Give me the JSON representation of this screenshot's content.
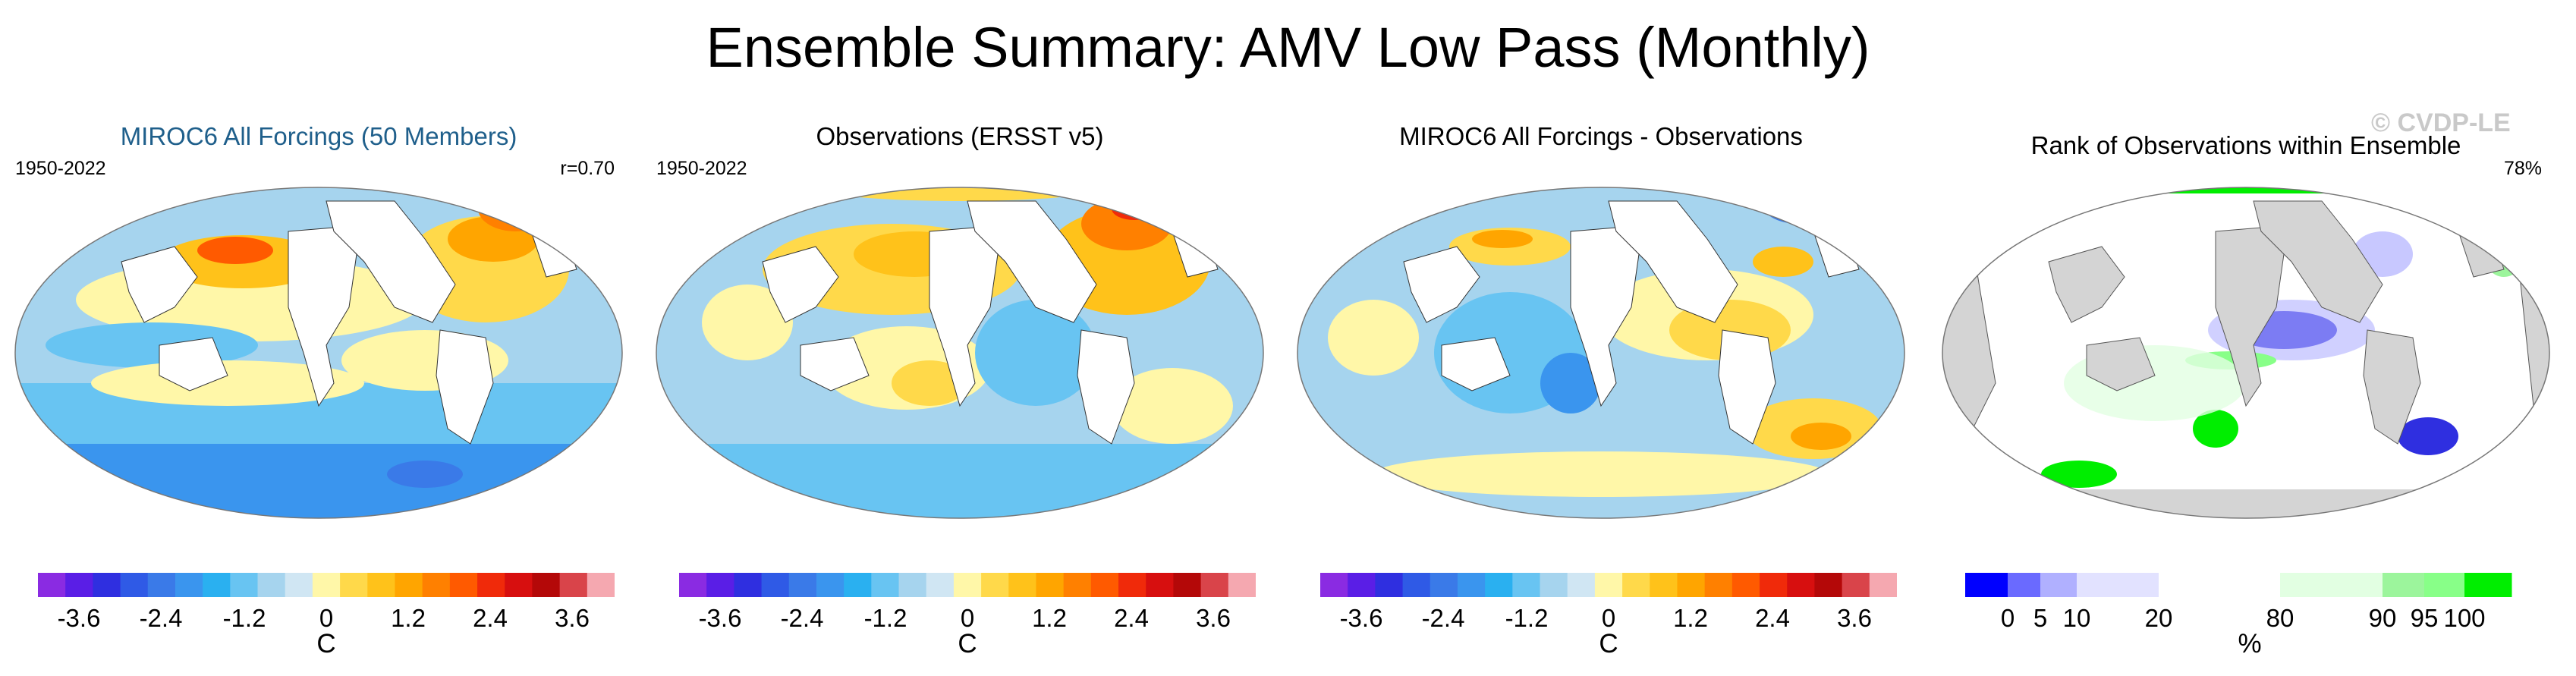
{
  "title": "Ensemble Summary: AMV Low Pass (Monthly)",
  "copyright": "© CVDP-LE",
  "panels": [
    {
      "title": "MIROC6 All Forcings (50 Members)",
      "title_color": "#1f5f8b",
      "left_note": "1950-2022",
      "right_note": "r=0.70",
      "unit": "C",
      "ticks": [
        "-3.6",
        "-2.4",
        "-1.2",
        "0",
        "1.2",
        "2.4",
        "3.6"
      ]
    },
    {
      "title": "Observations (ERSST v5)",
      "left_note": "1950-2022",
      "right_note": "",
      "unit": "C",
      "ticks": [
        "-3.6",
        "-2.4",
        "-1.2",
        "0",
        "1.2",
        "2.4",
        "3.6"
      ]
    },
    {
      "title": "MIROC6 All Forcings - Observations",
      "left_note": "",
      "right_note": "",
      "unit": "C",
      "ticks": [
        "-3.6",
        "-2.4",
        "-1.2",
        "0",
        "1.2",
        "2.4",
        "3.6"
      ]
    },
    {
      "title": "Rank of Observations within Ensemble",
      "left_note": "",
      "right_note": "78%",
      "unit": "%",
      "ticks": [
        "0",
        "5",
        "10",
        "20",
        "80",
        "90",
        "95",
        "100"
      ]
    }
  ],
  "colors": {
    "temp_scale": [
      "#8a2be2",
      "#5a1ee6",
      "#2f2fe0",
      "#2f5ae6",
      "#3a7ae8",
      "#3a95ee",
      "#2ab0f0",
      "#68c4f2",
      "#a6d4ee",
      "#d0e6f3",
      "#fff7a8",
      "#ffd94a",
      "#ffc21a",
      "#ffa500",
      "#ff8000",
      "#ff5a00",
      "#f02a0a",
      "#d70f0f",
      "#b40808",
      "#d9444a",
      "#f5a8b0"
    ],
    "rank_scale": [
      "#0000ff",
      "#6a6aff",
      "#b0b0ff",
      "#e2e2ff",
      "#ffffff",
      "#e2ffe2",
      "#9cf59c",
      "#88ff88",
      "#00ee00"
    ],
    "land": "#ffffff",
    "land_rank": "#d4d4d4"
  }
}
